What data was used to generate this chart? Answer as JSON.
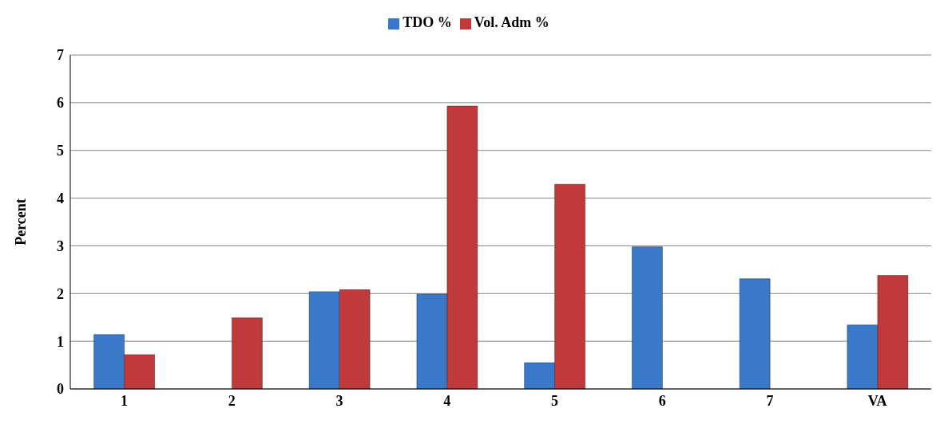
{
  "chart_data": {
    "type": "bar",
    "ylabel": "Percent",
    "categories": [
      "1",
      "2",
      "3",
      "4",
      "5",
      "6",
      "7",
      "VA"
    ],
    "series": [
      {
        "name": "TDO %",
        "color": "#3a78c9",
        "values": [
          1.14,
          null,
          2.04,
          1.99,
          0.55,
          2.98,
          2.31,
          1.34
        ]
      },
      {
        "name": "Vol. Adm %",
        "color": "#c0393b",
        "values": [
          0.72,
          1.49,
          2.08,
          5.93,
          4.29,
          null,
          null,
          2.38
        ]
      }
    ],
    "ylim": [
      0,
      7
    ],
    "yticks": [
      0,
      1,
      2,
      3,
      4,
      5,
      6,
      7
    ],
    "grid": "y",
    "legend": "top"
  }
}
